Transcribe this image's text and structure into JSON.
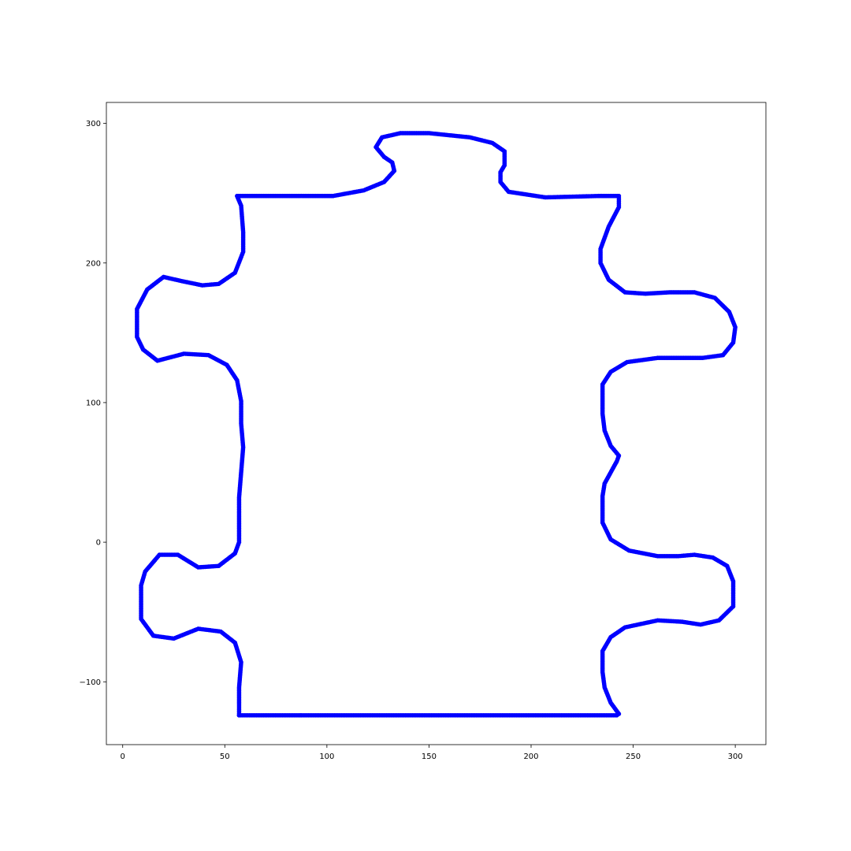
{
  "chart_data": {
    "type": "scatter",
    "title": "",
    "xlabel": "",
    "ylabel": "",
    "xlim": [
      -8,
      315
    ],
    "ylim": [
      -145,
      315
    ],
    "grid": false,
    "x_ticks": [
      0,
      50,
      100,
      150,
      200,
      250,
      300
    ],
    "y_ticks": [
      -100,
      0,
      100,
      200,
      300
    ],
    "x_tick_labels": [
      "0",
      "50",
      "100",
      "150",
      "200",
      "250",
      "300"
    ],
    "y_tick_labels": [
      "−100",
      "0",
      "100",
      "200",
      "300"
    ],
    "series": [
      {
        "color": "#0000ff",
        "marker": "circle",
        "connected": true,
        "x": [
          57,
          242,
          243,
          239,
          236,
          235,
          235,
          239,
          246,
          262,
          274,
          283,
          292,
          299,
          299,
          296,
          289,
          280,
          272,
          262,
          248,
          239,
          235,
          235,
          236,
          242,
          243,
          239,
          236,
          235,
          235,
          239,
          247,
          262,
          284,
          294,
          299,
          300,
          297,
          290,
          280,
          268,
          256,
          246,
          238,
          234,
          234,
          238,
          243,
          243,
          237,
          233,
          207,
          198,
          189,
          185,
          185,
          187,
          187,
          181,
          170,
          150,
          136,
          127,
          124,
          128,
          132,
          133,
          128,
          118,
          103,
          80,
          56,
          58,
          59,
          59,
          55,
          47,
          39,
          29,
          20,
          12,
          7,
          7,
          10,
          17,
          30,
          42,
          51,
          56,
          58,
          58,
          59,
          58,
          57,
          57,
          57,
          55,
          47,
          37,
          27,
          18,
          11,
          9,
          9,
          15,
          25,
          37,
          48,
          55,
          58,
          57,
          57,
          57
        ],
        "y": [
          -124,
          -124,
          -123,
          -115,
          -104,
          -93,
          -78,
          -68,
          -61,
          -56,
          -57,
          -59,
          -56,
          -46,
          -28,
          -17,
          -11,
          -9,
          -10,
          -10,
          -6,
          2,
          14,
          33,
          42,
          58,
          62,
          69,
          80,
          92,
          113,
          122,
          129,
          132,
          132,
          134,
          143,
          154,
          165,
          175,
          179,
          179,
          178,
          179,
          188,
          200,
          210,
          226,
          240,
          248,
          248,
          248,
          247,
          249,
          251,
          258,
          265,
          270,
          280,
          286,
          290,
          293,
          293,
          290,
          283,
          276,
          272,
          266,
          258,
          252,
          248,
          248,
          248,
          241,
          222,
          208,
          193,
          185,
          184,
          187,
          190,
          181,
          167,
          147,
          138,
          130,
          135,
          134,
          127,
          116,
          101,
          85,
          68,
          50,
          32,
          16,
          0,
          -8,
          -17,
          -18,
          -9,
          -9,
          -21,
          -31,
          -55,
          -67,
          -69,
          -62,
          -64,
          -72,
          -86,
          -104,
          -116,
          -124
        ]
      }
    ]
  }
}
